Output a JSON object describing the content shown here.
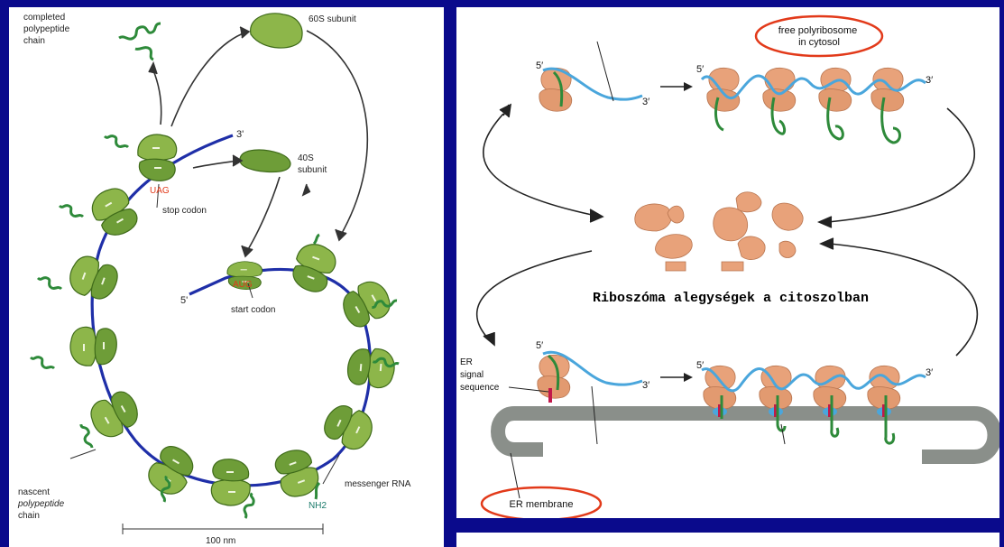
{
  "left_diagram": {
    "labels": {
      "completed_chain": [
        "completed",
        "polypeptide",
        "chain"
      ],
      "subunit_60s": "60S subunit",
      "subunit_40s": [
        "40S",
        "subunit"
      ],
      "three_prime": "3'",
      "five_prime": "5'",
      "stop_codon_seq": "UAG",
      "stop_codon": "stop codon",
      "start_codon_seq": "AUG",
      "start_codon": "start codon",
      "nascent_chain": [
        "nascent",
        "polypeptide",
        "chain"
      ],
      "messenger_rna": "messenger RNA",
      "nh2": "NH2",
      "scale": "100 nm"
    }
  },
  "right_diagram": {
    "labels": {
      "free_polyribosome": [
        "free polyribosome",
        "in cytosol"
      ],
      "five_prime": "5′",
      "three_prime": "3′",
      "caption": "Riboszóma alegységek a citoszolban",
      "er_signal": [
        "ER",
        "signal",
        "sequence"
      ],
      "er_membrane": "ER membrane"
    }
  },
  "colors": {
    "background": "#0a0a8c",
    "ribosome_green": "#8db64a",
    "ribosome_dark": "#4d7a1f",
    "ribosome_orange": "#e8a27a",
    "mrna_left": "#1f2fa8",
    "mrna_right": "#4aa6dc",
    "chain_green": "#2e8a3a",
    "highlight_red": "#e23a1a",
    "membrane_gray": "#8a8f8a"
  }
}
